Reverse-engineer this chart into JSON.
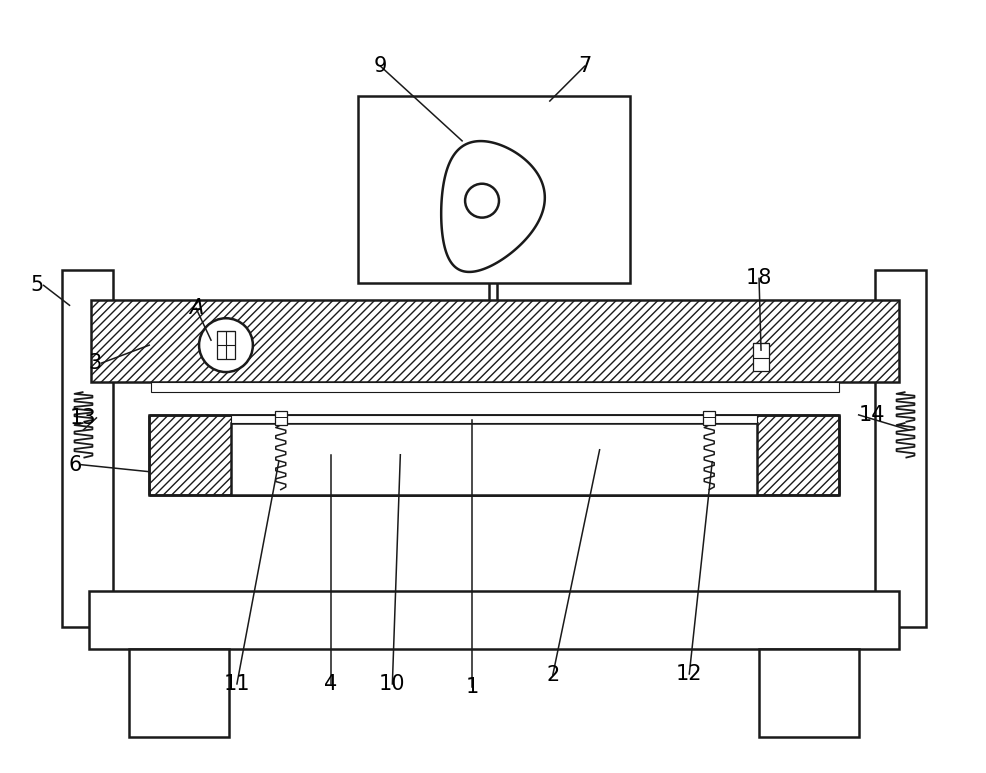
{
  "bg_color": "#ffffff",
  "line_color": "#1a1a1a",
  "label_fontsize": 15,
  "lw_main": 1.8,
  "hatch_density": "////"
}
